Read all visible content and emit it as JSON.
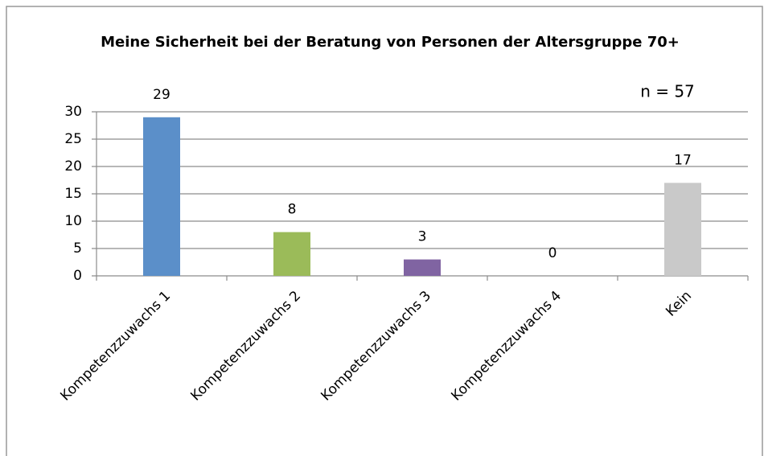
{
  "chart_data": {
    "type": "bar",
    "title": "Meine Sicherheit bei der Beratung von Personen der Altersgruppe 70+",
    "annotation": "n = 57",
    "categories": [
      "Kompetenzzuwachs 1",
      "Kompetenzzuwachs 2",
      "Kompetenzzuwachs 3",
      "Kompetenzzuwachs 4",
      "Kein"
    ],
    "values": [
      29,
      8,
      3,
      0,
      17
    ],
    "colors": [
      "#5b8fc9",
      "#9bbb59",
      "#8064a2",
      "#4bacc6",
      "#c9c9c9"
    ],
    "ylim": [
      0,
      30
    ],
    "yticks": [
      0,
      5,
      10,
      15,
      20,
      25,
      30
    ],
    "grid": true
  }
}
